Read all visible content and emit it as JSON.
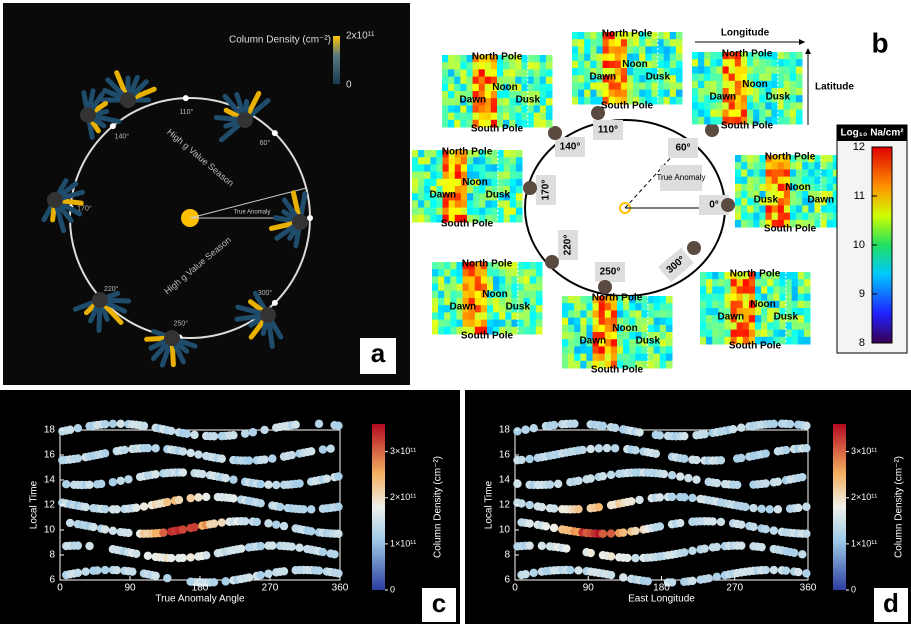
{
  "panel_a": {
    "label": "a",
    "colorbar_title": "Column Density (cm⁻²)",
    "colorbar_max": "2x10¹¹",
    "colorbar_min": "0",
    "season_labels": [
      "High g Value Season",
      "High g Value Season"
    ],
    "true_anomaly": "True Anomaly",
    "angle_labels": [
      "110°",
      "60°",
      "140°",
      "170°",
      "220°",
      "250°",
      "300°"
    ]
  },
  "panel_b": {
    "label": "b",
    "longitude": "Longitude",
    "latitude": "Latitude",
    "true_anomaly": "True Anomaly",
    "angle_labels": [
      "140°",
      "110°",
      "60°",
      "170°",
      "0°",
      "220°",
      "250°",
      "300°"
    ],
    "maps": [
      [
        "North Pole",
        "Noon",
        "Dawn",
        "Dusk",
        "South Pole"
      ],
      [
        "North Pole",
        "Noon",
        "Dawn",
        "Dusk",
        "South Pole"
      ],
      [
        "North Pole",
        "Noon",
        "Dawn",
        "Dusk",
        "South Pole"
      ],
      [
        "North Pole",
        "Noon",
        "Dawn",
        "Dusk",
        "South Pole"
      ],
      [
        "North Pole",
        "Noon",
        "Dusk",
        "Dawn",
        "South Pole"
      ],
      [
        "North Pole",
        "Noon",
        "Dawn",
        "Dusk",
        "South Pole"
      ],
      [
        "North Pole",
        "Noon",
        "Dawn",
        "Dusk",
        "South Pole"
      ],
      [
        "North Pole",
        "Noon",
        "Dawn",
        "Dusk",
        "South Pole"
      ]
    ],
    "colorbar": {
      "title": "Log₁₀ Na/cm²",
      "lim": [
        8,
        12
      ],
      "ticks": [
        8,
        9,
        10,
        11,
        12
      ]
    }
  },
  "panel_c": {
    "label": "c",
    "xlabel": "True Anomaly Angle",
    "ylabel": "Local Time",
    "xlim": [
      0,
      360
    ],
    "xticks": [
      0,
      90,
      180,
      270,
      360
    ],
    "ylim": [
      6,
      18
    ],
    "yticks": [
      6,
      8,
      10,
      12,
      14,
      16,
      18
    ],
    "colorbar": {
      "label": "Column Density (cm⁻²)",
      "lim": [
        0,
        360000000000
      ],
      "ticks": [
        0,
        {
          "value": 100000000000,
          "label": "1×10¹¹"
        },
        {
          "value": 200000000000,
          "label": "2×10¹¹"
        },
        {
          "value": 300000000000,
          "label": "3×10¹¹"
        }
      ]
    }
  },
  "panel_d": {
    "label": "d",
    "xlabel": "East Longitude",
    "ylabel": "Local Time",
    "xlim": [
      0,
      360
    ],
    "xticks": [
      0,
      90,
      180,
      270,
      360
    ],
    "ylim": [
      6,
      18
    ],
    "yticks": [
      6,
      8,
      10,
      12,
      14,
      16,
      18
    ],
    "colorbar": {
      "label": "Column Density (cm⁻²)",
      "lim": [
        0,
        360000000000
      ],
      "ticks": [
        0,
        {
          "value": 100000000000,
          "label": "1×10¹¹"
        },
        {
          "value": 200000000000,
          "label": "2×10¹¹"
        },
        {
          "value": 300000000000,
          "label": "3×10¹¹"
        }
      ]
    }
  }
}
